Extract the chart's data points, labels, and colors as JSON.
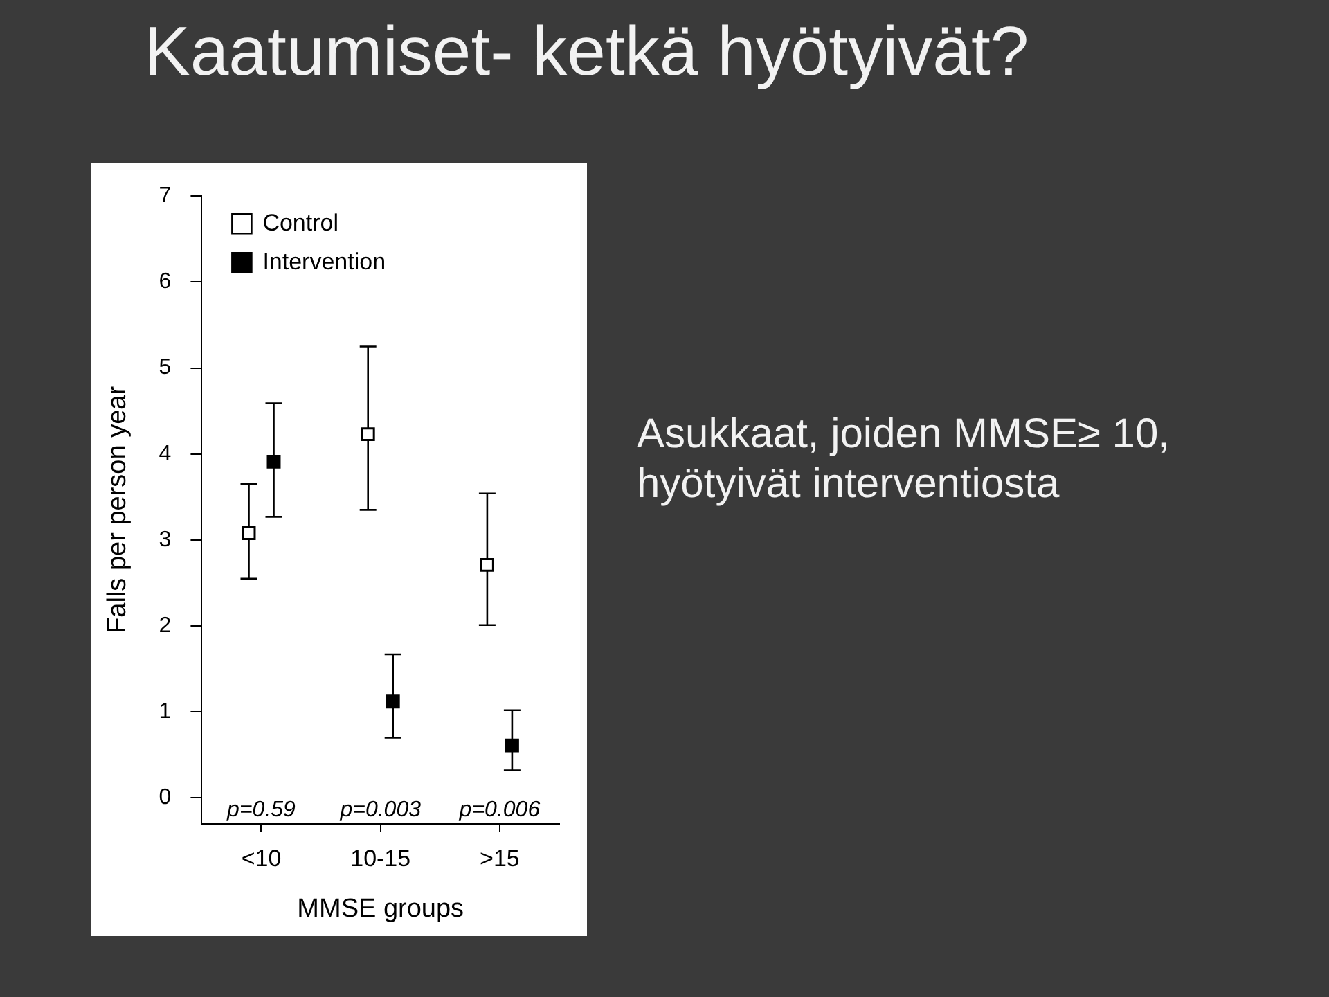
{
  "chart_data": {
    "type": "scatter",
    "title": "Kaatumiset- ketkä hyötyivät?",
    "xlabel": "MMSE groups",
    "ylabel": "Falls per person year",
    "categories": [
      "<10",
      "10-15",
      ">15"
    ],
    "series": [
      {
        "name": "Control",
        "color": "#ffffff",
        "values": [
          3.08,
          4.23,
          2.71
        ],
        "errors": [
          [
            2.55,
            3.65
          ],
          [
            3.35,
            5.25
          ],
          [
            2.01,
            3.54
          ]
        ]
      },
      {
        "name": "Intervention",
        "color": "#000000",
        "values": [
          3.91,
          1.12,
          0.61
        ],
        "errors": [
          [
            3.27,
            4.59
          ],
          [
            0.7,
            1.67
          ],
          [
            0.32,
            1.02
          ]
        ]
      }
    ],
    "ylim": [
      -0.3,
      7
    ],
    "yticks": [
      0,
      1,
      2,
      3,
      4,
      5,
      6,
      7
    ],
    "marker": "square",
    "legend": "top left",
    "annotations": [
      "p=0.59",
      "p=0.003",
      "p=0.006",
      "Asukkaat, joiden MMSE≥ 10, hyötyivät interventiosta"
    ]
  }
}
